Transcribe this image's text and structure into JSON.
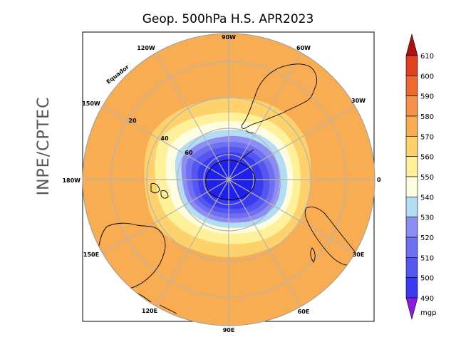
{
  "title": "Geop. 500hPa H.S. APR2023",
  "side_label": "INPE/CPTEC",
  "equator_label": "Equador",
  "longitude_labels": [
    "90W",
    "60W",
    "30W",
    "0",
    "30E",
    "60E",
    "90E",
    "120E",
    "150E",
    "180W",
    "150W",
    "120W"
  ],
  "latitude_labels": [
    "20",
    "40",
    "60"
  ],
  "colorbar": {
    "unit": "mgp",
    "levels": [
      490,
      500,
      510,
      520,
      530,
      540,
      550,
      560,
      570,
      580,
      590,
      600,
      610
    ],
    "colors": [
      "#2020ee",
      "#3a3af0",
      "#5555f0",
      "#6f6ff2",
      "#8c8cf4",
      "#b3dcf5",
      "#fffde0",
      "#fff09a",
      "#fdd26c",
      "#f9ad52",
      "#f6914a",
      "#ec6a30",
      "#e04020",
      "#cc1c14"
    ],
    "under_color": "#8a1ee0",
    "over_color": "#b01010"
  },
  "map_data": {
    "type": "polar-stereographic contour map",
    "variable": "500hPa geopotential height",
    "hemisphere": "Southern",
    "period": "APR2023",
    "units": "mgp",
    "range": [
      490,
      590
    ]
  }
}
